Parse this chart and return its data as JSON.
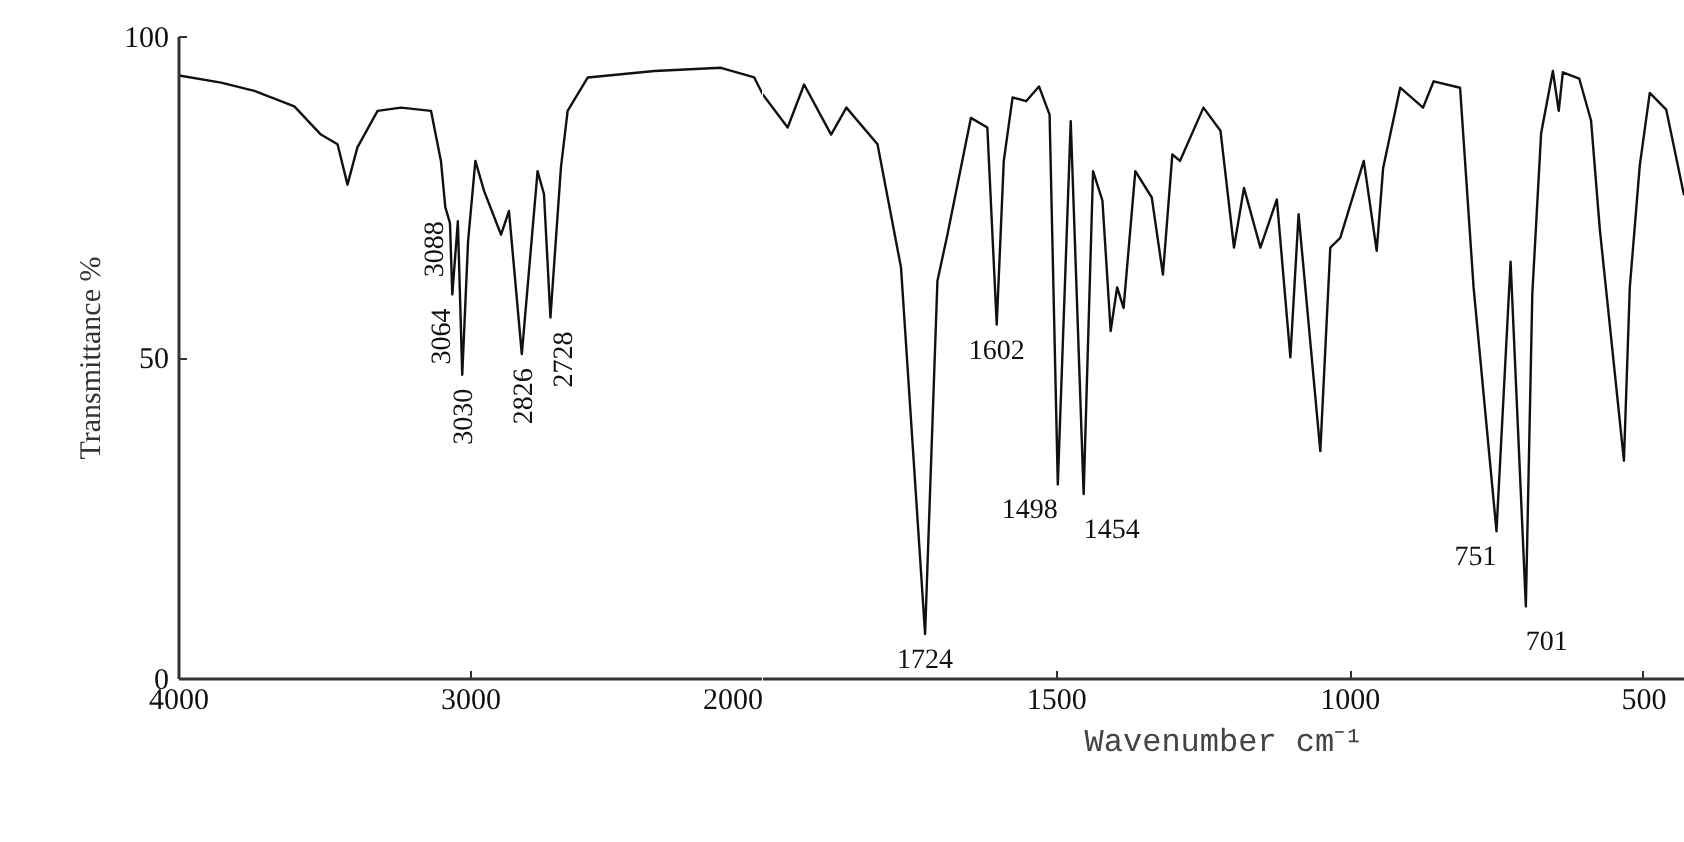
{
  "chart_data": [
    {
      "type": "line",
      "ylabel": "Transmittance %",
      "xlim": [
        4000,
        2000
      ],
      "xticks": [
        4000,
        3000,
        2000
      ],
      "ylim": [
        0,
        100
      ],
      "yticks": [
        0,
        50,
        100
      ],
      "grid": false,
      "marker": "none",
      "line_style": "solid",
      "series": [
        {
          "color": "#111111",
          "x": [
            4000,
            3856,
            3742,
            3605,
            3514,
            3457,
            3423,
            3389,
            3320,
            3240,
            3137,
            3103,
            3088,
            3072,
            3064,
            3045,
            3030,
            3010,
            2985,
            2955,
            2897,
            2870,
            2826,
            2772,
            2750,
            2728,
            2692,
            2669,
            2600,
            2372,
            2144,
            2030,
            2000
          ],
          "values": [
            94.0,
            92.9,
            91.6,
            89.2,
            84.8,
            83.3,
            77.0,
            82.8,
            88.5,
            89.0,
            88.5,
            80.7,
            73.5,
            71.0,
            59.9,
            71.3,
            47.4,
            68.2,
            80.7,
            76.0,
            69.2,
            72.9,
            50.6,
            79.1,
            75.5,
            56.3,
            79.7,
            88.5,
            93.7,
            94.7,
            95.2,
            93.7,
            91.0
          ]
        }
      ],
      "annotations": [
        {
          "text": "3088",
          "x": 3088,
          "y": 73.5
        },
        {
          "text": "3064",
          "x": 3064,
          "y": 59.9
        },
        {
          "text": "3030",
          "x": 3030,
          "y": 47.4
        },
        {
          "text": "2826",
          "x": 2826,
          "y": 50.6
        },
        {
          "text": "2728",
          "x": 2728,
          "y": 56.3
        }
      ]
    },
    {
      "type": "line",
      "xlabel": "Wavenumber cm⁻¹",
      "tick_labels": "x",
      "xlim": [
        2000,
        430
      ],
      "xticks": [
        1500,
        1000,
        500
      ],
      "ylim": [
        0,
        100
      ],
      "grid": false,
      "marker": "none",
      "line_style": "solid",
      "series": [
        {
          "color": "#111111",
          "x": [
            2000,
            1958,
            1930,
            1884,
            1858,
            1805,
            1765,
            1724,
            1703,
            1686,
            1646,
            1618,
            1602,
            1590,
            1575,
            1552,
            1530,
            1512,
            1498,
            1476,
            1454,
            1438,
            1422,
            1408,
            1397,
            1386,
            1366,
            1338,
            1319,
            1303,
            1290,
            1250,
            1221,
            1198,
            1181,
            1153,
            1125,
            1102,
            1088,
            1051,
            1034,
            1017,
            977,
            955,
            944,
            915,
            876,
            858,
            813,
            790,
            751,
            727,
            701,
            690,
            675,
            655,
            645,
            638,
            610,
            590,
            575,
            534,
            524,
            507,
            490,
            462,
            432
          ],
          "values": [
            91.0,
            85.9,
            92.6,
            84.8,
            89.0,
            83.3,
            64.1,
            7.0,
            62.0,
            69.2,
            87.4,
            85.9,
            55.2,
            80.7,
            90.6,
            90.0,
            92.3,
            87.9,
            30.3,
            86.9,
            28.8,
            79.1,
            74.5,
            54.2,
            61.0,
            57.8,
            79.1,
            75.0,
            63.0,
            81.7,
            80.7,
            89.0,
            85.4,
            67.2,
            76.5,
            67.2,
            74.7,
            50.1,
            72.4,
            35.5,
            67.2,
            68.7,
            80.7,
            66.7,
            79.6,
            92.1,
            89.0,
            93.1,
            92.1,
            61.0,
            23.0,
            65.0,
            11.3,
            60.0,
            85.0,
            94.7,
            88.5,
            94.5,
            93.5,
            87.0,
            70.0,
            34.0,
            61.0,
            80.0,
            91.3,
            88.7,
            75.5
          ]
        }
      ],
      "annotations": [
        {
          "text": "1724",
          "x": 1724,
          "y": 7.0
        },
        {
          "text": "1602",
          "x": 1602,
          "y": 55.2
        },
        {
          "text": "1498",
          "x": 1498,
          "y": 30.3
        },
        {
          "text": "1454",
          "x": 1454,
          "y": 28.8
        },
        {
          "text": "751",
          "x": 751,
          "y": 23.0
        },
        {
          "text": "701",
          "x": 701,
          "y": 11.3
        }
      ]
    }
  ]
}
